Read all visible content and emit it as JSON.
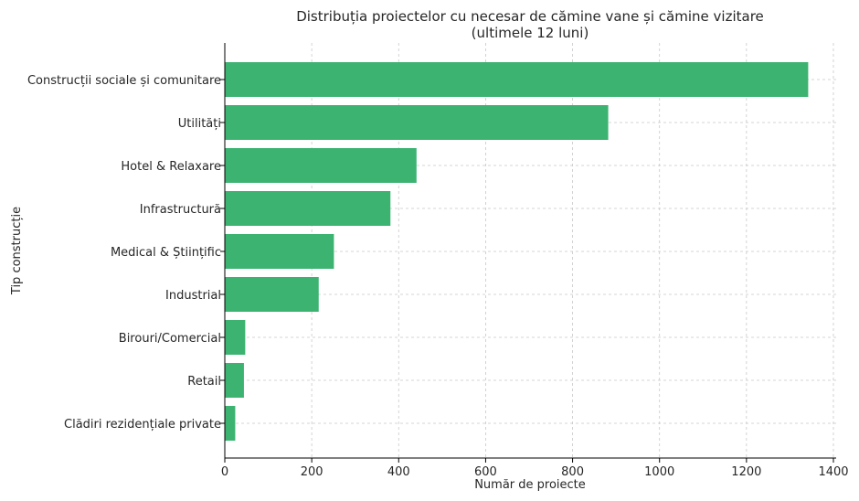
{
  "chart_data": {
    "type": "bar",
    "orientation": "horizontal",
    "title_line1": "Distribuția proiectelor cu necesar de cămine vane și cămine vizitare",
    "title_line2": "(ultimele 12 luni)",
    "xlabel": "Număr de proiecte",
    "ylabel": "Tip construcție",
    "xlim": [
      0,
      1400
    ],
    "xticks": [
      0,
      200,
      400,
      600,
      800,
      1000,
      1200,
      1400
    ],
    "grid": true,
    "bar_color": "#3cb371",
    "categories": [
      "Construcții sociale și comunitare",
      "Utilități",
      "Hotel & Relaxare",
      "Infrastructură",
      "Medical & Științific",
      "Industrial",
      "Birouri/Comercial",
      "Retail",
      "Clădiri rezidențiale private"
    ],
    "values": [
      1342,
      882,
      441,
      381,
      251,
      216,
      47,
      44,
      24
    ]
  }
}
